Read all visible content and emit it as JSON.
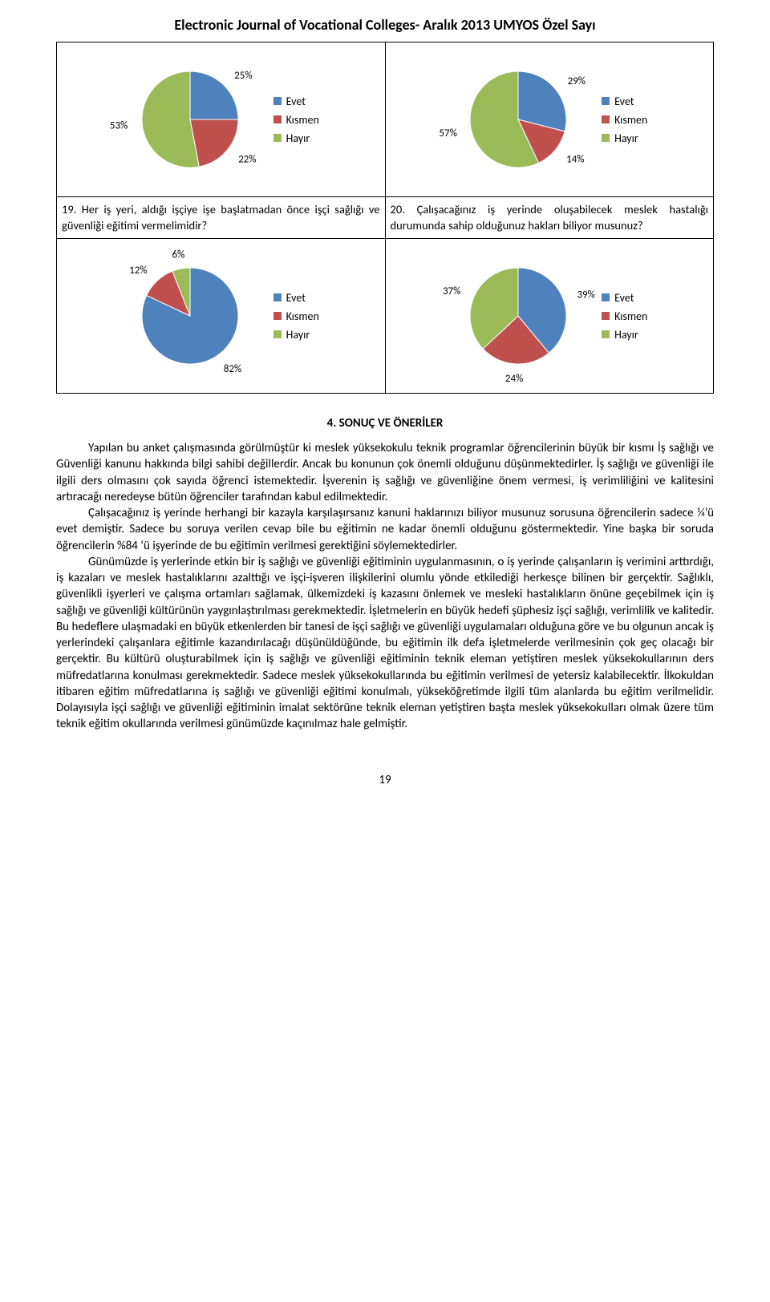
{
  "journal_title": "Electronic Journal of Vocational Colleges- Aralık 2013 UMYOS Özel Sayı",
  "page_number": "19",
  "legend_labels": {
    "evet": "Evet",
    "kismen": "Kısmen",
    "hayir": "Hayır"
  },
  "colors": {
    "evet": "#4f81bd",
    "kismen": "#c0504d",
    "hayir": "#9bbb59",
    "border": "#000000",
    "bg": "#ffffff",
    "text": "#000000"
  },
  "pie_style": {
    "type": "pie",
    "radius": 60,
    "label_fontsize": 13,
    "label_offset": 18,
    "legend_fontsize": 14,
    "swatch_size": 10,
    "slice_border": "#ffffff",
    "slice_border_width": 1
  },
  "charts": {
    "c1": {
      "type": "pie",
      "slices": [
        {
          "label": "25%",
          "value": 25,
          "key": "evet"
        },
        {
          "label": "22%",
          "value": 22,
          "key": "kismen"
        },
        {
          "label": "53%",
          "value": 53,
          "key": "hayir"
        }
      ]
    },
    "c2": {
      "type": "pie",
      "slices": [
        {
          "label": "29%",
          "value": 29,
          "key": "evet"
        },
        {
          "label": "14%",
          "value": 14,
          "key": "kismen"
        },
        {
          "label": "57%",
          "value": 57,
          "key": "hayir"
        }
      ]
    },
    "c3": {
      "type": "pie",
      "slices": [
        {
          "label": "82%",
          "value": 82,
          "key": "evet"
        },
        {
          "label": "12%",
          "value": 12,
          "key": "kismen"
        },
        {
          "label": "6%",
          "value": 6,
          "key": "hayir"
        }
      ]
    },
    "c4": {
      "type": "pie",
      "slices": [
        {
          "label": "39%",
          "value": 39,
          "key": "evet"
        },
        {
          "label": "24%",
          "value": 24,
          "key": "kismen"
        },
        {
          "label": "37%",
          "value": 37,
          "key": "hayir"
        }
      ]
    }
  },
  "questions": {
    "q19": "19. Her iş yeri, aldığı işçiye işe başlatmadan önce işçi sağlığı ve güvenliği eğitimi vermelimidir?",
    "q20": "20. Çalışacağınız iş yerinde oluşabilecek meslek hastalığı durumunda sahip olduğunuz hakları biliyor musunuz?"
  },
  "section_title": "4. SONUÇ VE ÖNERİLER",
  "paragraphs": {
    "p1": "Yapılan bu anket çalışmasında görülmüştür ki meslek yüksekokulu teknik programlar öğrencilerinin büyük bir kısmı İş sağlığı ve Güvenliği kanunu hakkında bilgi sahibi değillerdir. Ancak bu konunun çok önemli olduğunu düşünmektedirler. İş sağlığı ve güvenliği ile ilgili ders olmasını çok sayıda öğrenci istemektedir. İşverenin iş sağlığı ve güvenliğine önem vermesi, iş verimliliğini ve kalitesini artıracağı neredeyse bütün öğrenciler tarafından kabul edilmektedir.",
    "p2": "Çalışacağınız iş yerinde herhangi bir kazayla karşılaşırsanız kanuni haklarınızı biliyor musunuz sorusuna öğrencilerin sadece ¼’ü evet demiştir. Sadece bu soruya verilen cevap bile bu eğitimin ne kadar önemli olduğunu göstermektedir. Yine başka bir soruda öğrencilerin %84 ‘ü işyerinde de bu eğitimin verilmesi gerektiğini söylemektedirler.",
    "p3": "Günümüzde iş yerlerinde etkin bir iş sağlığı ve güvenliği eğitiminin uygulanmasının, o iş yerinde çalışanların iş verimini arttırdığı, iş kazaları ve meslek hastalıklarını azalttığı ve işçi-işveren ilişkilerini olumlu yönde etkilediği herkesçe bilinen bir gerçektir. Sağlıklı, güvenlikli işyerleri ve çalışma ortamları sağlamak, ülkemizdeki iş kazasını önlemek ve mesleki hastalıkların önüne geçebilmek için iş sağlığı ve güvenliği kültürünün yaygınlaştırılması gerekmektedir. İşletmelerin en büyük hedefi şüphesiz işçi sağlığı, verimlilik ve kalitedir. Bu hedeflere ulaşmadaki en büyük etkenlerden bir tanesi de işçi sağlığı ve güvenliği uygulamaları olduğuna göre ve bu olgunun ancak iş yerlerindeki çalışanlara eğitimle kazandırılacağı düşünüldüğünde, bu eğitimin ilk defa işletmelerde verilmesinin çok geç olacağı bir gerçektir. Bu kültürü oluşturabilmek için iş sağlığı ve güvenliği eğitiminin teknik eleman yetiştiren meslek yüksekokullarının ders müfredatlarına konulması gerekmektedir. Sadece meslek yüksekokullarında bu eğitimin verilmesi de yetersiz kalabilecektir. İlkokuldan itibaren eğitim müfredatlarına iş sağlığı ve güvenliği eğitimi konulmalı, yükseköğretimde ilgili tüm alanlarda bu eğitim verilmelidir. Dolayısıyla işçi sağlığı ve güvenliği eğitiminin imalat sektörüne teknik eleman yetiştiren başta meslek yüksekokulları olmak üzere tüm teknik eğitim okullarında verilmesi günümüzde kaçınılmaz hale gelmiştir."
  }
}
